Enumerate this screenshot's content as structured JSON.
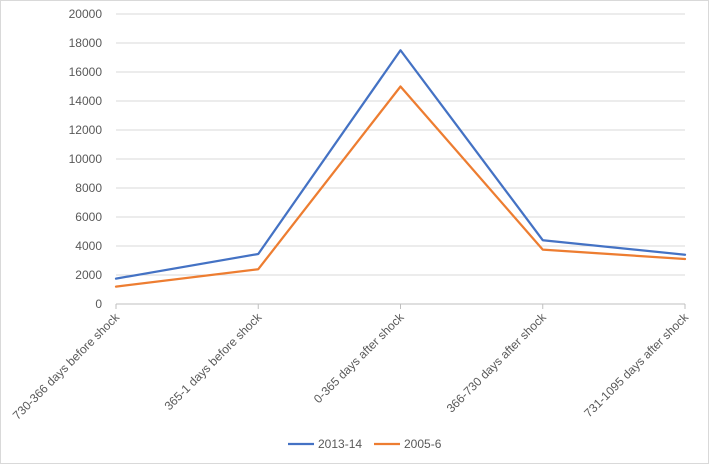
{
  "chart_data": {
    "type": "line",
    "title": "",
    "xlabel": "",
    "ylabel": "",
    "categories": [
      "730-366 days before shock",
      "365-1 days before shock",
      "0-365 days after shock",
      "366-730 days after shock",
      "731-1095 days after shock"
    ],
    "series": [
      {
        "name": "2013-14",
        "color": "#4472c4",
        "values": [
          1750,
          3450,
          17500,
          4400,
          3400
        ]
      },
      {
        "name": "2005-6",
        "color": "#ed7d31",
        "values": [
          1200,
          2400,
          15000,
          3750,
          3100
        ]
      }
    ],
    "ylim": [
      0,
      20000
    ],
    "yticks": [
      0,
      2000,
      4000,
      6000,
      8000,
      10000,
      12000,
      14000,
      16000,
      18000,
      20000
    ],
    "grid": true,
    "legend": "bottom-center"
  }
}
